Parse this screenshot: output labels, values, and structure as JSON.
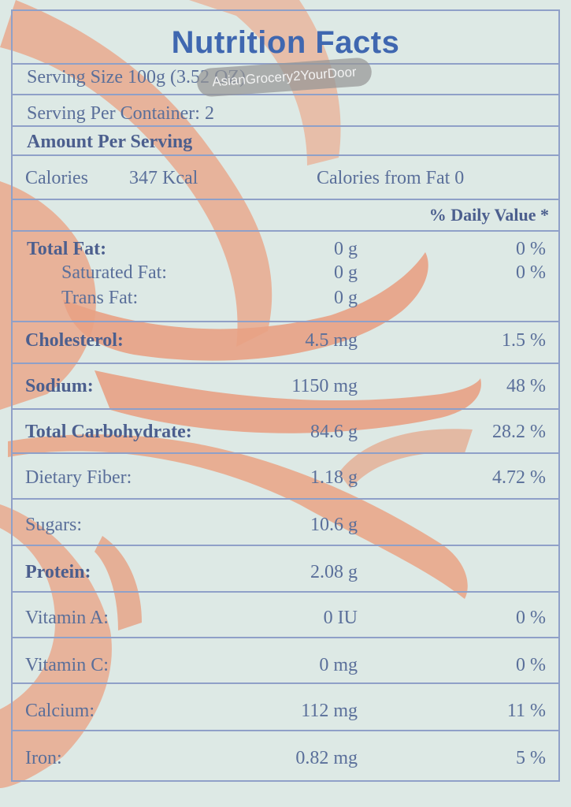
{
  "title": "Nutrition Facts",
  "watermark": "AsianGrocery2YourDoor",
  "serving_size": "Serving Size 100g (3.52 OZ)",
  "servings_per_container": "Serving Per Container: 2",
  "amount_per_serving": "Amount Per Serving",
  "calories_label": "Calories",
  "calories_value": "347 Kcal",
  "calories_from_fat": "Calories from Fat 0",
  "daily_value_header": "% Daily Value *",
  "nutrients": [
    {
      "label": "Total Fat:",
      "amount": "0 g",
      "dv": "0 %"
    },
    {
      "label": "Saturated Fat:",
      "amount": "0 g",
      "dv": "0 %"
    },
    {
      "label": "Trans Fat:",
      "amount": "0 g",
      "dv": ""
    },
    {
      "label": "Cholesterol:",
      "amount": "4.5 mg",
      "dv": "1.5 %"
    },
    {
      "label": "Sodium:",
      "amount": "1150 mg",
      "dv": "48 %"
    },
    {
      "label": "Total Carbohydrate:",
      "amount": "84.6 g",
      "dv": "28.2 %"
    },
    {
      "label": "Dietary Fiber:",
      "amount": "1.18 g",
      "dv": "4.72 %"
    },
    {
      "label": "Sugars:",
      "amount": "10.6 g",
      "dv": ""
    },
    {
      "label": "Protein:",
      "amount": "2.08 g",
      "dv": ""
    },
    {
      "label": "Vitamin A:",
      "amount": "0 IU",
      "dv": "0 %"
    },
    {
      "label": "Vitamin C:",
      "amount": "0 mg",
      "dv": "0 %"
    },
    {
      "label": "Calcium:",
      "amount": "112 mg",
      "dv": "11 %"
    },
    {
      "label": "Iron:",
      "amount": "0.82 mg",
      "dv": "5 %"
    }
  ]
}
